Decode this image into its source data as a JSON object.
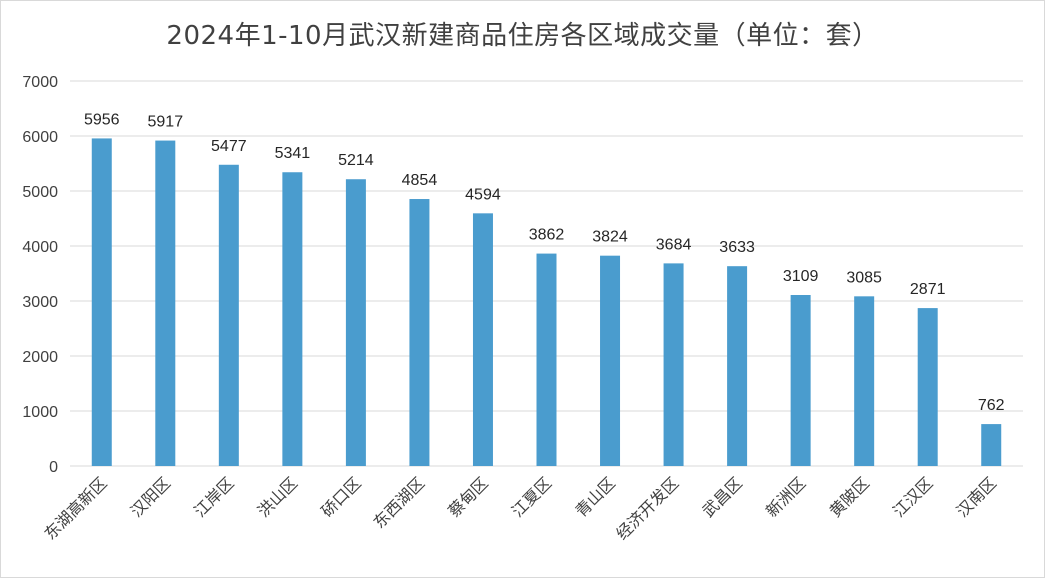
{
  "chart_data": {
    "type": "bar",
    "title": "2024年1-10月武汉新建商品住房各区域成交量（单位：套）",
    "categories": [
      "东湖高新区",
      "汉阳区",
      "江岸区",
      "洪山区",
      "硚口区",
      "东西湖区",
      "蔡甸区",
      "江夏区",
      "青山区",
      "经济开发区",
      "武昌区",
      "新洲区",
      "黄陂区",
      "江汉区",
      "汉南区"
    ],
    "series": [
      {
        "values": [
          5956,
          5917,
          5477,
          5341,
          5214,
          4854,
          4594,
          3862,
          3824,
          3684,
          3633,
          3109,
          3085,
          2871,
          762
        ]
      }
    ],
    "ylim": [
      0,
      7000
    ],
    "yticks": [
      0,
      1000,
      2000,
      3000,
      4000,
      5000,
      6000,
      7000
    ],
    "grid": true,
    "legend": "none",
    "bar_color": "#4a9cce",
    "grid_color": "#d9d9d9"
  }
}
